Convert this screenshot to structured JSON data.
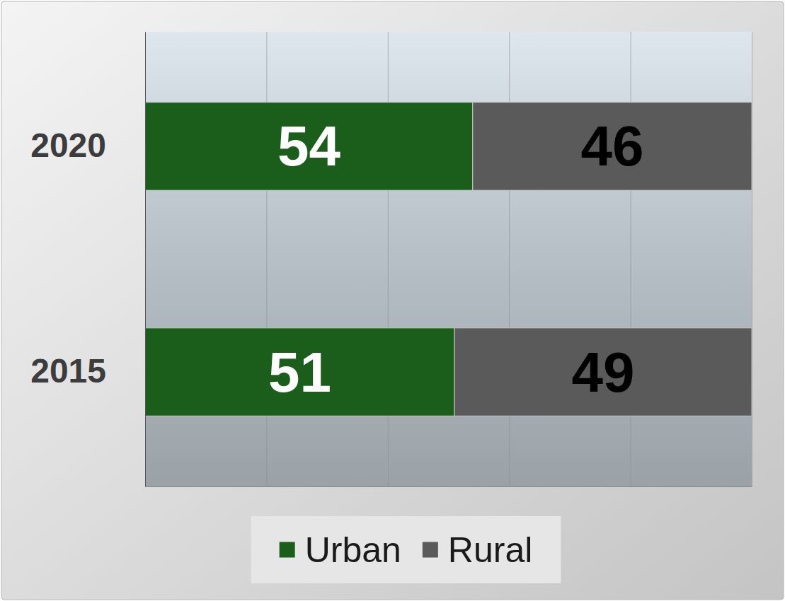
{
  "chart_data": {
    "type": "bar",
    "orientation": "horizontal",
    "stacked": true,
    "data_labels": true,
    "categories": [
      "2020",
      "2015"
    ],
    "series": [
      {
        "name": "Urban",
        "color": "#1b5e1b",
        "values": [
          54,
          51
        ]
      },
      {
        "name": "Rural",
        "color": "#5a5a5a",
        "values": [
          46,
          49
        ]
      }
    ],
    "xlim": [
      0,
      100
    ],
    "xticks": [
      0,
      20,
      40,
      60,
      80,
      100
    ],
    "grid": true,
    "tick_labels": "y",
    "legend": "bottom"
  }
}
